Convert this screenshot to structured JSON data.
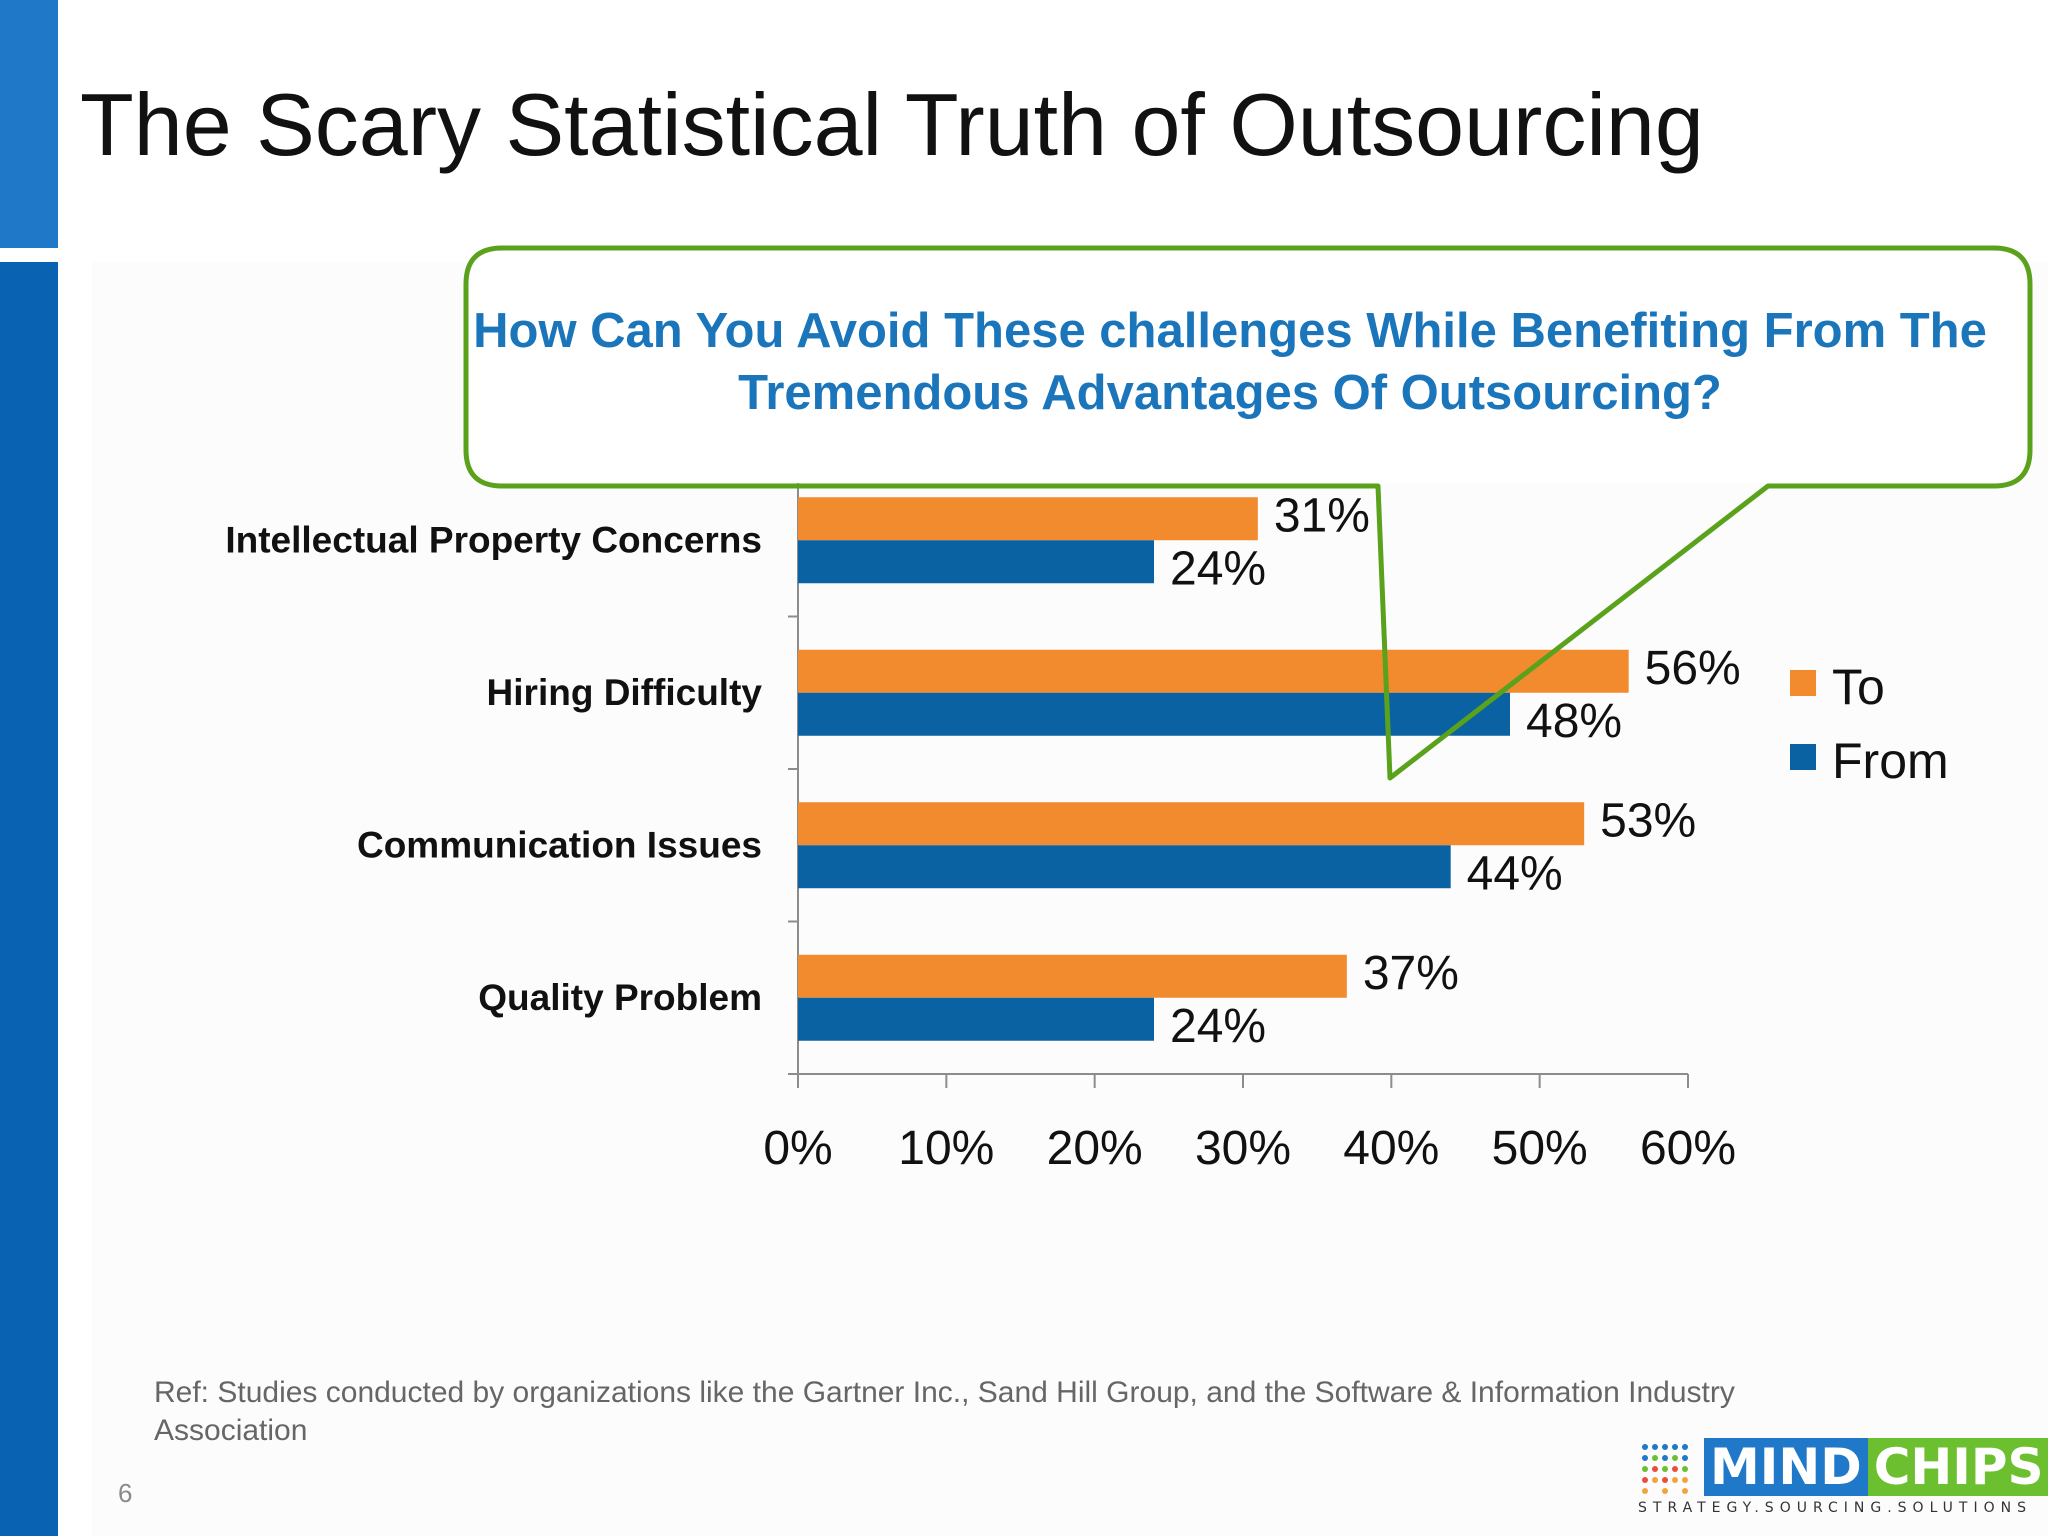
{
  "slide": {
    "title": "The Scary Statistical Truth of Outsourcing",
    "callout": "How Can You Avoid These challenges While Benefiting From The Tremendous Advantages Of Outsourcing?",
    "reference": "Ref: Studies conducted by organizations like the Gartner Inc., Sand Hill Group, and the Software & Information Industry Association",
    "page_number": "6",
    "logo": {
      "word1": "MIND",
      "word2": "CHIPS",
      "tagline": "STRATEGY.SOURCING.SOLUTIONS"
    }
  },
  "colors": {
    "to": "#f28a2e",
    "from": "#0a62a3",
    "callout_border": "#5aa21c",
    "callout_text": "#1b75bb",
    "side_bar": "#0a63b2"
  },
  "chart_data": {
    "type": "bar",
    "orientation": "horizontal",
    "categories": [
      "Intellectual Property Concerns",
      "Hiring Difficulty",
      "Communication Issues",
      "Quality Problem"
    ],
    "series": [
      {
        "name": "To",
        "values": [
          31,
          56,
          53,
          37
        ]
      },
      {
        "name": "From",
        "values": [
          24,
          48,
          44,
          24
        ]
      }
    ],
    "data_labels": {
      "To": [
        "31%",
        "56%",
        "53%",
        "37%"
      ],
      "From": [
        "24%",
        "48%",
        "44%",
        "24%"
      ]
    },
    "x_ticks": [
      "0%",
      "10%",
      "20%",
      "30%",
      "40%",
      "50%",
      "60%"
    ],
    "xlim": [
      0,
      60
    ],
    "legend": "right",
    "grid": false
  }
}
